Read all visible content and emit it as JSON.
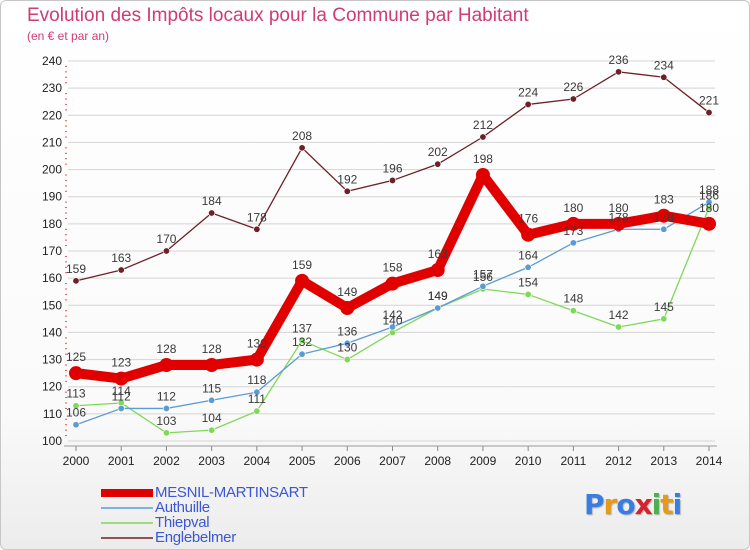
{
  "header": {
    "title": "Evolution des Impôts locaux pour la Commune par Habitant",
    "subtitle": "(en € et par an)"
  },
  "colors": {
    "title": "#cf3b74",
    "grid": "#d4d4d4",
    "axis_text": "#222222",
    "legend_text": "#3b56d6"
  },
  "chart_data": {
    "type": "line",
    "title": "Evolution des Impôts locaux pour la Commune par Habitant",
    "subtitle": "(en € et par an)",
    "xlabel": "",
    "ylabel": "",
    "x": [
      "2000",
      "2001",
      "2002",
      "2003",
      "2004",
      "2005",
      "2006",
      "2007",
      "2008",
      "2009",
      "2010",
      "2011",
      "2012",
      "2013",
      "2014"
    ],
    "ylim": [
      100,
      240
    ],
    "yticks": [
      100,
      110,
      120,
      130,
      140,
      150,
      160,
      170,
      180,
      190,
      200,
      210,
      220,
      230,
      240
    ],
    "grid": "horizontal",
    "legend_position": "bottom-left",
    "series": [
      {
        "name": "Englebelmer",
        "color": "#6e1f27",
        "values": [
          159,
          163,
          170,
          184,
          178,
          208,
          192,
          196,
          202,
          212,
          224,
          226,
          236,
          234,
          221
        ]
      },
      {
        "name": "Thiepval",
        "color": "#7ed957",
        "values": [
          113,
          114,
          103,
          104,
          111,
          137,
          130,
          140,
          149,
          156,
          154,
          148,
          142,
          145,
          186
        ]
      },
      {
        "name": "Authuille",
        "color": "#5b9bd5",
        "values": [
          106,
          112,
          112,
          115,
          118,
          132,
          136,
          142,
          149,
          157,
          164,
          173,
          178,
          178,
          188
        ]
      },
      {
        "name": "MESNIL-MARTINSART",
        "color": "#e00000",
        "values": [
          125,
          123,
          128,
          128,
          130,
          159,
          149,
          158,
          163,
          198,
          176,
          180,
          180,
          183,
          180
        ]
      }
    ]
  },
  "legend": [
    {
      "name": "MESNIL-MARTINSART",
      "color": "#e00000"
    },
    {
      "name": "Authuille",
      "color": "#5b9bd5"
    },
    {
      "name": "Thiepval",
      "color": "#7ed957"
    },
    {
      "name": "Englebelmer",
      "color": "#6e1f27"
    }
  ],
  "logo": {
    "text": "Proxiti",
    "letter_colors": [
      "#3a7de0",
      "#e59a18",
      "#3a7de0",
      "#d4232e",
      "#4caf50",
      "#e59a18",
      "#3a7de0"
    ]
  }
}
